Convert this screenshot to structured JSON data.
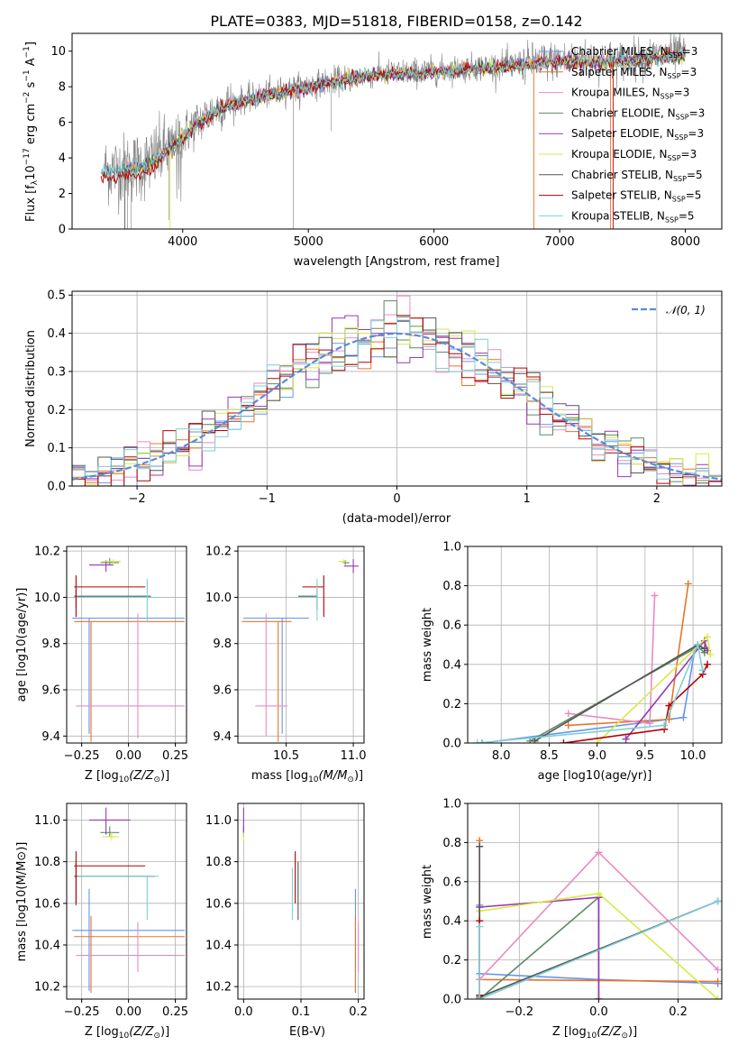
{
  "title": "PLATE=0383, MJD=51818, FIBERID=0158, z=0.142",
  "models": [
    {
      "name": "Chabrier MILES, N$_{SSP}$=3",
      "label_pre": "Chabrier MILES, N",
      "label_sub": "SSP",
      "label_post": "=3",
      "color": "#6495ed"
    },
    {
      "name": "Salpeter MILES, N$_{SSP}$=3",
      "label_pre": "Salpeter MILES, N",
      "label_sub": "SSP",
      "label_post": "=3",
      "color": "#e9742a"
    },
    {
      "name": "Kroupa MILES, N$_{SSP}$=3",
      "label_pre": "Kroupa MILES, N",
      "label_sub": "SSP",
      "label_post": "=3",
      "color": "#e98bc2"
    },
    {
      "name": "Chabrier ELODIE, N$_{SSP}$=3",
      "label_pre": "Chabrier ELODIE, N",
      "label_sub": "SSP",
      "label_post": "=3",
      "color": "#5d8a64"
    },
    {
      "name": "Salpeter ELODIE, N$_{SSP}$=3",
      "label_pre": "Salpeter ELODIE, N",
      "label_sub": "SSP",
      "label_post": "=3",
      "color": "#9b36b2"
    },
    {
      "name": "Kroupa ELODIE, N$_{SSP}$=3",
      "label_pre": "Kroupa ELODIE, N",
      "label_sub": "SSP",
      "label_post": "=3",
      "color": "#d6ea48"
    },
    {
      "name": "Chabrier STELIB, N$_{SSP}$=5",
      "label_pre": "Chabrier STELIB, N",
      "label_sub": "SSP",
      "label_post": "=5",
      "color": "#555555"
    },
    {
      "name": "Salpeter STELIB, N$_{SSP}$=5",
      "label_pre": "Salpeter STELIB, N",
      "label_sub": "SSP",
      "label_post": "=5",
      "color": "#b30000"
    },
    {
      "name": "Kroupa STELIB, N$_{SSP}$=5",
      "label_pre": "Kroupa STELIB, N",
      "label_sub": "SSP",
      "label_post": "=5",
      "color": "#7fcfd6"
    }
  ],
  "chart_data": [
    {
      "type": "line",
      "panel": "spectrum",
      "title": "PLATE=0383, MJD=51818, FIBERID=0158, z=0.142",
      "xlabel": "wavelength [Angstrom, rest frame]",
      "ylabel_pre": "Flux [f",
      "ylabel_lambda": "λ",
      "ylabel_mid": "10",
      "ylabel_exp1": "−17",
      "ylabel_post": " erg cm",
      "ylabel_exp2": "−2",
      "ylabel_s": " s",
      "ylabel_exp3": "−1",
      "ylabel_a": " A",
      "ylabel_exp4": "−1",
      "ylabel_end": "]",
      "xlim": [
        3120,
        8290
      ],
      "ylim": [
        0,
        11
      ],
      "xticks": [
        4000,
        5000,
        6000,
        7000,
        8000
      ],
      "yticks": [
        0,
        2,
        4,
        6,
        8,
        10
      ],
      "data_color": "#808080",
      "continuum": [
        [
          3350,
          3.3
        ],
        [
          3500,
          3.4
        ],
        [
          3700,
          3.6
        ],
        [
          3900,
          4.6
        ],
        [
          4100,
          5.9
        ],
        [
          4300,
          6.9
        ],
        [
          4500,
          7.3
        ],
        [
          4800,
          7.8
        ],
        [
          5100,
          8.2
        ],
        [
          5500,
          8.7
        ],
        [
          6000,
          8.9
        ],
        [
          6500,
          9.2
        ],
        [
          7000,
          9.5
        ],
        [
          7500,
          9.5
        ],
        [
          8000,
          9.9
        ]
      ],
      "legend_loc": "upper right"
    },
    {
      "type": "line",
      "panel": "residuals",
      "xlabel": "(data-model)/error",
      "ylabel": "Normed distribution",
      "xlim": [
        -2.5,
        2.5
      ],
      "ylim": [
        0,
        0.51
      ],
      "xticks": [
        -2,
        -1,
        0,
        1,
        2
      ],
      "yticks": [
        0.0,
        0.1,
        0.2,
        0.3,
        0.4,
        0.5
      ],
      "gaussian_label": "𝒩(0, 1)",
      "gaussian_color": "#5a8ad8",
      "bin_width": 0.1,
      "legend_loc": "upper right"
    },
    {
      "type": "scatter",
      "panel": "age_vs_Z",
      "xlabel_pre": "Z [log",
      "xlabel_sub": "10",
      "xlabel_post": "(Z/Z",
      "xlabel_sun": "⊙",
      "xlabel_end": ")]",
      "ylabel": "age  [log10(age/yr)]",
      "xlim": [
        -0.33,
        0.31
      ],
      "ylim": [
        9.37,
        10.22
      ],
      "xticks": [
        -0.25,
        0.0,
        0.25
      ],
      "yticks": [
        9.4,
        9.6,
        9.8,
        10.0,
        10.2
      ],
      "points": [
        {
          "model": 0,
          "x": -0.21,
          "y": 9.91,
          "xerr": [
            0.09,
            0.51
          ],
          "yerr": [
            0.5,
            0.0
          ]
        },
        {
          "model": 1,
          "x": -0.2,
          "y": 9.895,
          "xerr": [
            0.09,
            0.5
          ],
          "yerr": [
            0.52,
            0.0
          ]
        },
        {
          "model": 2,
          "x": 0.05,
          "y": 9.53,
          "xerr": [
            0.33,
            0.25
          ],
          "yerr": [
            0.14,
            0.4
          ]
        },
        {
          "model": 3,
          "x": -0.1,
          "y": 10.15,
          "xerr": [
            0.05,
            0.05
          ],
          "yerr": [
            0.01,
            0.02
          ]
        },
        {
          "model": 4,
          "x": -0.12,
          "y": 10.14,
          "xerr": [
            0.09,
            0.04
          ],
          "yerr": [
            0.03,
            0.02
          ]
        },
        {
          "model": 5,
          "x": -0.08,
          "y": 10.155,
          "xerr": [
            0.06,
            0.04
          ],
          "yerr": [
            0.01,
            0.01
          ]
        },
        {
          "model": 6,
          "x": -0.28,
          "y": 10.005,
          "xerr": [
            0.01,
            0.4
          ],
          "yerr": [
            0.05,
            0.03
          ]
        },
        {
          "model": 7,
          "x": -0.28,
          "y": 10.045,
          "xerr": [
            0.01,
            0.37
          ],
          "yerr": [
            0.13,
            0.05
          ]
        },
        {
          "model": 8,
          "x": 0.1,
          "y": 10.0,
          "xerr": [
            0.37,
            0.06
          ],
          "yerr": [
            0.11,
            0.08
          ]
        }
      ]
    },
    {
      "type": "scatter",
      "panel": "age_vs_mass",
      "xlabel_pre": "mass [log",
      "xlabel_sub": "10",
      "xlabel_post": "(M/M",
      "xlabel_sun": "⊙",
      "xlabel_end": ")]",
      "xlim": [
        10.14,
        11.08
      ],
      "ylim": [
        9.37,
        10.22
      ],
      "xticks": [
        10.5,
        11.0
      ],
      "yticks": [
        9.4,
        9.6,
        9.8,
        10.0,
        10.2
      ],
      "points": [
        {
          "model": 0,
          "x": 10.47,
          "y": 9.91,
          "xerr": [
            0.29,
            0.2
          ],
          "yerr": [
            0.5,
            0.0
          ]
        },
        {
          "model": 1,
          "x": 10.44,
          "y": 9.895,
          "xerr": [
            0.27,
            0.1
          ],
          "yerr": [
            0.52,
            0.0
          ]
        },
        {
          "model": 2,
          "x": 10.35,
          "y": 9.53,
          "xerr": [
            0.08,
            0.16
          ],
          "yerr": [
            0.13,
            0.4
          ]
        },
        {
          "model": 3,
          "x": 10.94,
          "y": 10.15,
          "xerr": [
            0.02,
            0.03
          ],
          "yerr": [
            0.01,
            0.01
          ]
        },
        {
          "model": 4,
          "x": 11.0,
          "y": 10.135,
          "xerr": [
            0.07,
            0.04
          ],
          "yerr": [
            0.03,
            0.03
          ]
        },
        {
          "model": 5,
          "x": 10.93,
          "y": 10.155,
          "xerr": [
            0.04,
            0.02
          ],
          "yerr": [
            0.01,
            0.01
          ]
        },
        {
          "model": 6,
          "x": 10.73,
          "y": 10.005,
          "xerr": [
            0.14,
            0.0
          ],
          "yerr": [
            0.06,
            0.03
          ]
        },
        {
          "model": 7,
          "x": 10.78,
          "y": 10.045,
          "xerr": [
            0.16,
            0.0
          ],
          "yerr": [
            0.13,
            0.05
          ]
        },
        {
          "model": 8,
          "x": 10.73,
          "y": 10.0,
          "xerr": [
            0.13,
            0.0
          ],
          "yerr": [
            0.1,
            0.08
          ]
        }
      ]
    },
    {
      "type": "line",
      "panel": "mass_weight_vs_age",
      "xlabel": "age  [log10(age/yr)]",
      "ylabel": "mass weight",
      "xlim": [
        7.65,
        10.3
      ],
      "ylim": [
        0,
        1.0
      ],
      "xticks": [
        8.0,
        8.5,
        9.0,
        9.5,
        10.0
      ],
      "yticks": [
        0.0,
        0.2,
        0.4,
        0.6,
        0.8,
        1.0
      ],
      "series": [
        {
          "model": 0,
          "x": [
            7.8,
            9.9,
            10.02
          ],
          "y": [
            0.0,
            0.13,
            0.48
          ]
        },
        {
          "model": 1,
          "x": [
            8.7,
            9.75,
            9.95
          ],
          "y": [
            0.09,
            0.12,
            0.81
          ]
        },
        {
          "model": 2,
          "x": [
            8.7,
            9.55,
            9.6
          ],
          "y": [
            0.15,
            0.1,
            0.75
          ]
        },
        {
          "model": 3,
          "x": [
            8.3,
            10.05,
            10.12
          ],
          "y": [
            0.01,
            0.49,
            0.46
          ]
        },
        {
          "model": 4,
          "x": [
            9.3,
            10.12,
            10.15
          ],
          "y": [
            0.02,
            0.52,
            0.47
          ]
        },
        {
          "model": 5,
          "x": [
            9.0,
            10.15,
            10.18
          ],
          "y": [
            0.0,
            0.54,
            0.45
          ]
        },
        {
          "model": 6,
          "x": [
            8.35,
            10.05,
            10.12
          ],
          "y": [
            0.01,
            0.5,
            0.48
          ]
        },
        {
          "model": 7,
          "x": [
            8.65,
            9.7,
            9.75,
            10.1,
            10.15
          ],
          "y": [
            0.0,
            0.07,
            0.19,
            0.35,
            0.4
          ]
        },
        {
          "model": 8,
          "x": [
            7.75,
            9.7,
            10.05,
            10.1
          ],
          "y": [
            0.0,
            0.09,
            0.5,
            0.37
          ]
        }
      ]
    },
    {
      "type": "scatter",
      "panel": "mass_vs_Z",
      "xlabel_pre": "Z [log",
      "xlabel_sub": "10",
      "xlabel_post": "(Z/Z",
      "xlabel_sun": "⊙",
      "xlabel_end": ")]",
      "ylabel": "mass [log10(M/M⊙)]",
      "xlim": [
        -0.33,
        0.31
      ],
      "ylim": [
        10.14,
        11.08
      ],
      "xticks": [
        -0.25,
        0.0,
        0.25
      ],
      "yticks": [
        10.2,
        10.4,
        10.6,
        10.8,
        11.0
      ],
      "points": [
        {
          "model": 0,
          "x": -0.21,
          "y": 10.47,
          "xerr": [
            0.09,
            0.51
          ],
          "yerr": [
            0.29,
            0.2
          ]
        },
        {
          "model": 1,
          "x": -0.2,
          "y": 10.44,
          "xerr": [
            0.09,
            0.5
          ],
          "yerr": [
            0.27,
            0.1
          ]
        },
        {
          "model": 2,
          "x": 0.05,
          "y": 10.35,
          "xerr": [
            0.33,
            0.25
          ],
          "yerr": [
            0.08,
            0.16
          ]
        },
        {
          "model": 3,
          "x": -0.1,
          "y": 10.94,
          "xerr": [
            0.05,
            0.05
          ],
          "yerr": [
            0.02,
            0.03
          ]
        },
        {
          "model": 4,
          "x": -0.12,
          "y": 11.0,
          "xerr": [
            0.09,
            0.13
          ],
          "yerr": [
            0.07,
            0.06
          ]
        },
        {
          "model": 5,
          "x": -0.09,
          "y": 10.92,
          "xerr": [
            0.05,
            0.04
          ],
          "yerr": [
            0.02,
            0.02
          ]
        },
        {
          "model": 6,
          "x": -0.28,
          "y": 10.73,
          "xerr": [
            0.01,
            0.42
          ],
          "yerr": [
            0.14,
            0.07
          ]
        },
        {
          "model": 7,
          "x": -0.28,
          "y": 10.78,
          "xerr": [
            0.01,
            0.37
          ],
          "yerr": [
            0.18,
            0.07
          ]
        },
        {
          "model": 8,
          "x": 0.1,
          "y": 10.73,
          "xerr": [
            0.37,
            0.06
          ],
          "yerr": [
            0.21,
            0.0
          ]
        }
      ]
    },
    {
      "type": "scatter",
      "panel": "mass_vs_EBV",
      "xlabel": "E(B-V)",
      "xlim": [
        -0.01,
        0.21
      ],
      "ylim": [
        10.14,
        11.08
      ],
      "xticks": [
        0.0,
        0.1,
        0.2
      ],
      "yticks": [
        10.2,
        10.4,
        10.6,
        10.8,
        11.0
      ],
      "points": [
        {
          "model": 0,
          "x": 0.195,
          "y": 10.47,
          "xerr": [
            0,
            0
          ],
          "yerr": [
            0.29,
            0.2
          ]
        },
        {
          "model": 1,
          "x": 0.195,
          "y": 10.44,
          "xerr": [
            0,
            0
          ],
          "yerr": [
            0.27,
            0.1
          ]
        },
        {
          "model": 2,
          "x": 0.2,
          "y": 10.35,
          "xerr": [
            0,
            0
          ],
          "yerr": [
            0.08,
            0.16
          ]
        },
        {
          "model": 3,
          "x": 0.0,
          "y": 10.94,
          "xerr": [
            0,
            0
          ],
          "yerr": [
            0.02,
            0.03
          ]
        },
        {
          "model": 4,
          "x": 0.0,
          "y": 11.0,
          "xerr": [
            0,
            0
          ],
          "yerr": [
            0.07,
            0.06
          ]
        },
        {
          "model": 5,
          "x": 0.0,
          "y": 10.92,
          "xerr": [
            0,
            0
          ],
          "yerr": [
            0.02,
            0.02
          ]
        },
        {
          "model": 6,
          "x": 0.095,
          "y": 10.73,
          "xerr": [
            0,
            0
          ],
          "yerr": [
            0.21,
            0.07
          ]
        },
        {
          "model": 7,
          "x": 0.09,
          "y": 10.78,
          "xerr": [
            0,
            0
          ],
          "yerr": [
            0.18,
            0.07
          ]
        },
        {
          "model": 8,
          "x": 0.085,
          "y": 10.73,
          "xerr": [
            0,
            0
          ],
          "yerr": [
            0.21,
            0.04
          ]
        }
      ]
    },
    {
      "type": "line",
      "panel": "mass_weight_vs_Z",
      "xlabel_pre": "Z [log",
      "xlabel_sub": "10",
      "xlabel_post": "(Z/Z",
      "xlabel_sun": "⊙",
      "xlabel_end": ")]",
      "ylabel": "mass weight",
      "xlim": [
        -0.33,
        0.31
      ],
      "ylim": [
        0,
        1.0
      ],
      "xticks": [
        -0.2,
        0.0,
        0.2
      ],
      "yticks": [
        0.0,
        0.2,
        0.4,
        0.6,
        0.8,
        1.0
      ],
      "series": [
        {
          "model": 0,
          "x": [
            -0.3,
            -0.3,
            0.0,
            0.3
          ],
          "y": [
            0.48,
            0.13,
            0.1,
            0.08
          ]
        },
        {
          "model": 1,
          "x": [
            -0.3,
            -0.3,
            0.3
          ],
          "y": [
            0.81,
            0.1,
            0.09
          ]
        },
        {
          "model": 2,
          "x": [
            -0.3,
            0.0,
            0.3
          ],
          "y": [
            0.1,
            0.75,
            0.15
          ]
        },
        {
          "model": 3,
          "x": [
            -0.3,
            0.0,
            0.0
          ],
          "y": [
            0.0,
            0.52,
            0.0
          ]
        },
        {
          "model": 4,
          "x": [
            -0.3,
            0.0,
            0.0
          ],
          "y": [
            0.47,
            0.52,
            0.0
          ]
        },
        {
          "model": 5,
          "x": [
            -0.3,
            0.0,
            0.3
          ],
          "y": [
            0.45,
            0.54,
            0.0
          ]
        },
        {
          "model": 6,
          "x": [
            -0.3,
            -0.3,
            0.3
          ],
          "y": [
            0.78,
            0.01,
            0.5
          ]
        },
        {
          "model": 7,
          "x": [
            -0.3,
            -0.3
          ],
          "y": [
            0.4,
            0.02
          ]
        },
        {
          "model": 8,
          "x": [
            -0.3,
            -0.3,
            0.3
          ],
          "y": [
            0.37,
            0.0,
            0.5
          ]
        }
      ]
    }
  ]
}
